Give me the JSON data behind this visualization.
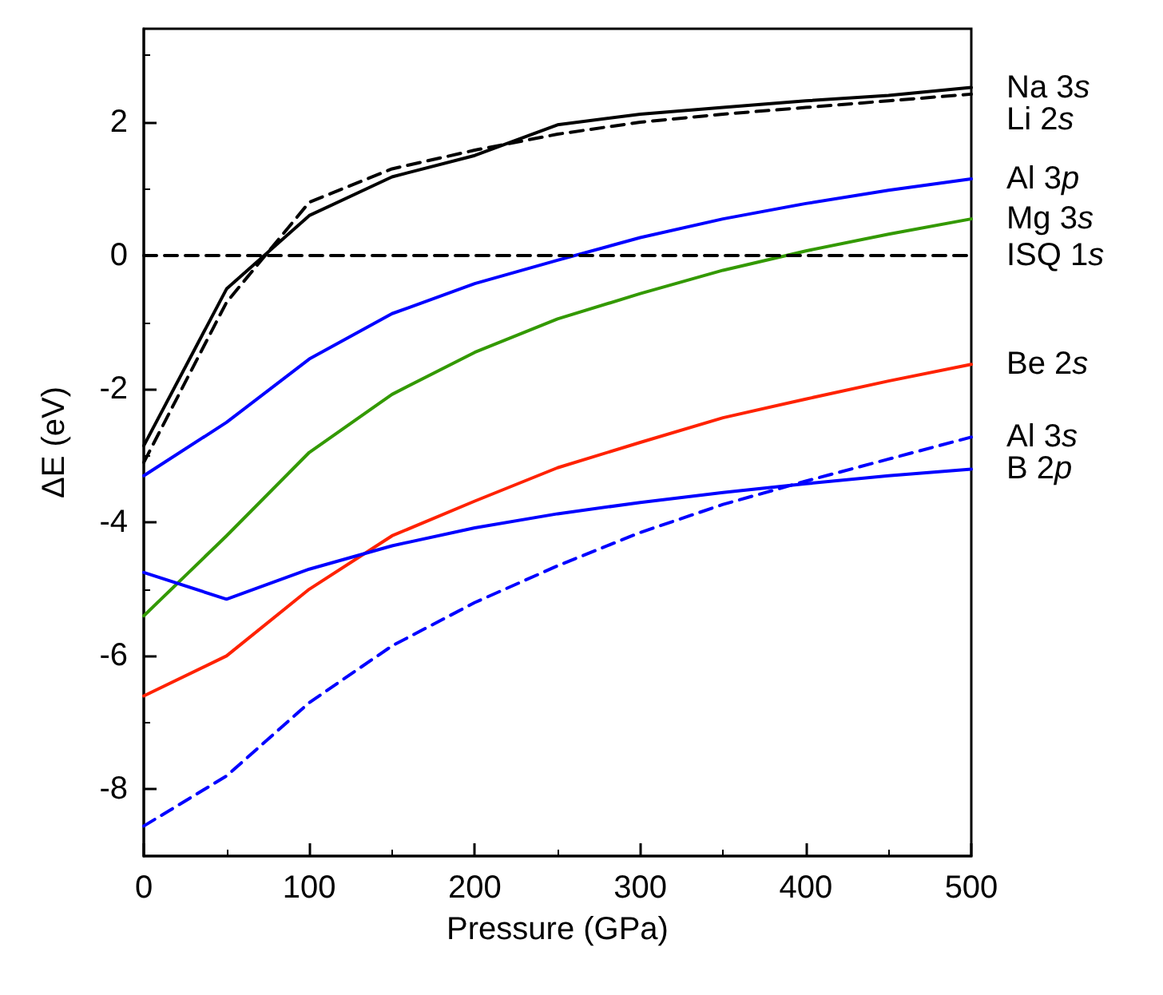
{
  "chart_data": {
    "type": "line",
    "xlabel": "Pressure (GPa)",
    "ylabel": "ΔE (eV)",
    "x": [
      0,
      50,
      100,
      150,
      200,
      250,
      300,
      350,
      400,
      450,
      500
    ],
    "xlim": [
      0,
      500
    ],
    "xticks": [
      0,
      100,
      200,
      300,
      400,
      500
    ],
    "ylim": [
      -9,
      3.4
    ],
    "yticks": [
      -8,
      -6,
      -4,
      -2,
      0,
      2
    ],
    "grid": false,
    "legend": false,
    "marker": "none",
    "series": [
      {
        "name": "Na 3s",
        "color": "#000000",
        "line_style": "solid",
        "values": [
          -2.85,
          -0.5,
          0.6,
          1.18,
          1.5,
          1.96,
          2.12,
          2.22,
          2.32,
          2.4,
          2.52
        ]
      },
      {
        "name": "Li 2s",
        "color": "#000000",
        "line_style": "dashed",
        "values": [
          -3.1,
          -0.7,
          0.8,
          1.3,
          1.58,
          1.82,
          2.0,
          2.12,
          2.22,
          2.32,
          2.42
        ]
      },
      {
        "name": "Al 3p",
        "color": "#0000ff",
        "line_style": "solid",
        "values": [
          -3.3,
          -2.5,
          -1.55,
          -0.87,
          -0.42,
          -0.07,
          0.27,
          0.55,
          0.78,
          0.98,
          1.15
        ]
      },
      {
        "name": "Mg 3s",
        "color": "#339900",
        "line_style": "solid",
        "values": [
          -5.4,
          -4.2,
          -2.95,
          -2.08,
          -1.45,
          -0.95,
          -0.57,
          -0.22,
          0.07,
          0.32,
          0.55
        ]
      },
      {
        "name": "ISQ 1s",
        "color": "#000000",
        "line_style": "dashed",
        "values": [
          0,
          0,
          0,
          0,
          0,
          0,
          0,
          0,
          0,
          0,
          0
        ]
      },
      {
        "name": "Be 2s",
        "color": "#ff2200",
        "line_style": "solid",
        "values": [
          -6.6,
          -6.0,
          -5.0,
          -4.2,
          -3.68,
          -3.18,
          -2.8,
          -2.43,
          -2.15,
          -1.88,
          -1.63
        ]
      },
      {
        "name": "Al 3s",
        "color": "#0000ff",
        "line_style": "dashed",
        "values": [
          -8.55,
          -7.8,
          -6.7,
          -5.85,
          -5.2,
          -4.65,
          -4.15,
          -3.73,
          -3.38,
          -3.05,
          -2.72
        ]
      },
      {
        "name": "B 2p",
        "color": "#0000ff",
        "line_style": "solid",
        "values": [
          -4.75,
          -5.15,
          -4.7,
          -4.35,
          -4.08,
          -3.87,
          -3.7,
          -3.55,
          -3.42,
          -3.3,
          -3.2
        ]
      }
    ]
  }
}
